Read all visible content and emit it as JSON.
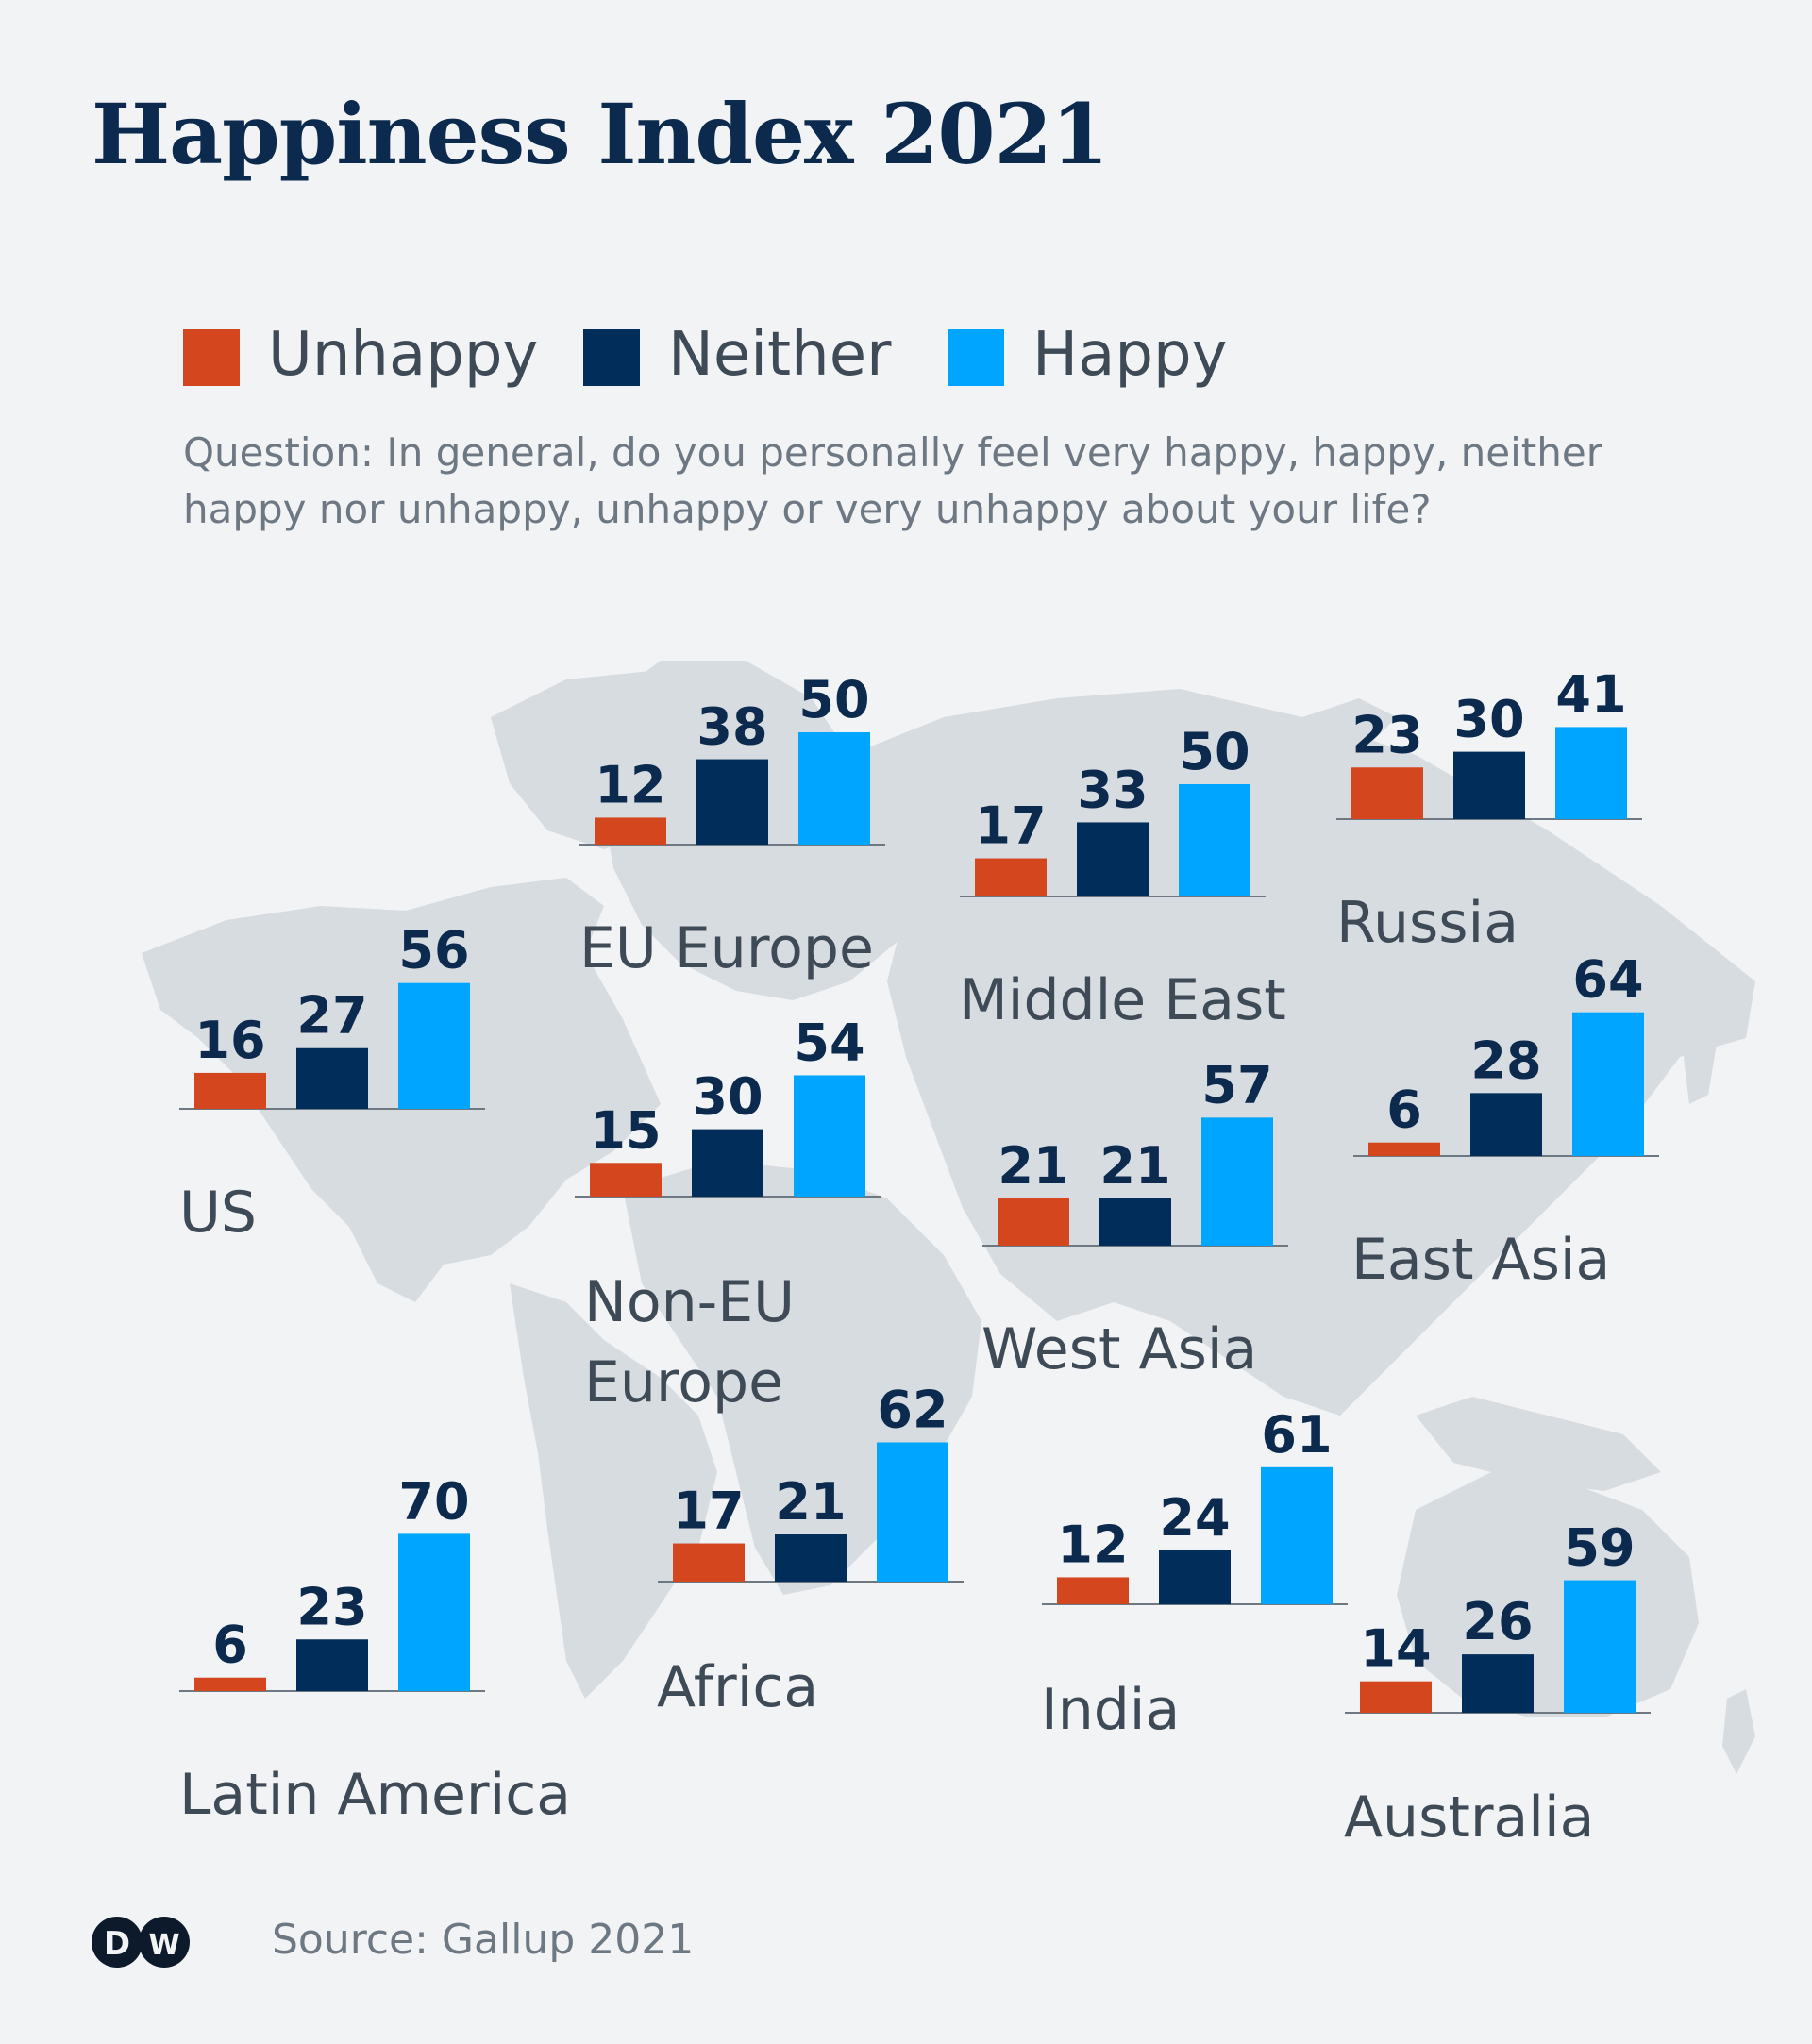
{
  "title": "Happiness Index 2021",
  "legend": [
    {
      "label": "Unhappy",
      "color": "#d3461e"
    },
    {
      "label": "Neither",
      "color": "#002d5a"
    },
    {
      "label": "Happy",
      "color": "#00a5ff"
    }
  ],
  "question": "Question: In general, do you personally feel very happy, happy, neither happy nor unhappy, unhappy or very unhappy about your life?",
  "source": "Source: Gallup 2021",
  "logo_text": "DW",
  "chart_data": {
    "type": "bar",
    "title": "Happiness Index 2021",
    "series_names": [
      "Unhappy",
      "Neither",
      "Happy"
    ],
    "groups": [
      {
        "region": "EU Europe",
        "values": [
          12,
          38,
          50
        ]
      },
      {
        "region": "Middle East",
        "values": [
          17,
          33,
          50
        ]
      },
      {
        "region": "Russia",
        "values": [
          23,
          30,
          41
        ]
      },
      {
        "region": "US",
        "values": [
          16,
          27,
          56
        ]
      },
      {
        "region": "Non-EU Europe",
        "values": [
          15,
          30,
          54
        ]
      },
      {
        "region": "West Asia",
        "values": [
          21,
          21,
          57
        ]
      },
      {
        "region": "East Asia",
        "values": [
          6,
          28,
          64
        ]
      },
      {
        "region": "Latin America",
        "values": [
          6,
          23,
          70
        ]
      },
      {
        "region": "Africa",
        "values": [
          17,
          21,
          62
        ]
      },
      {
        "region": "India",
        "values": [
          12,
          24,
          61
        ]
      },
      {
        "region": "Australia",
        "values": [
          14,
          26,
          59
        ]
      }
    ],
    "colors": [
      "#d3461e",
      "#002d5a",
      "#00a5ff"
    ]
  }
}
